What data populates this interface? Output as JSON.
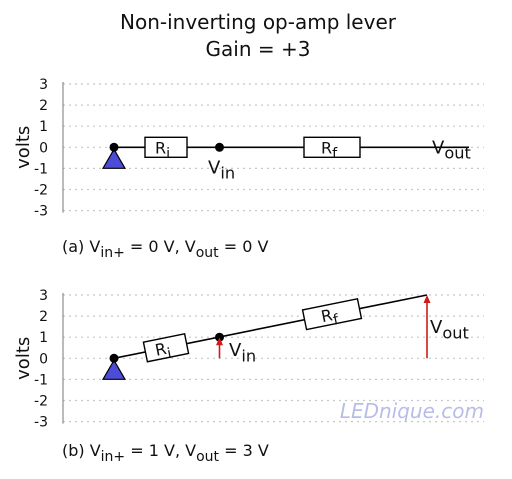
{
  "title": "Non-inverting op-amp lever",
  "subtitle": "Gain = +3",
  "watermark": "LEDnique.com",
  "colors": {
    "pivot": "#4c4cd9",
    "vector": "#d11a1a",
    "watermark": "#b8bde8",
    "grid": "#c8c8c8"
  },
  "panels": [
    {
      "ylabel": "volts",
      "ticks": [
        "3",
        "2",
        "1",
        "0",
        "-1",
        "-2",
        "-3"
      ],
      "vin_plus": 0,
      "vout": 0,
      "resistor_in": {
        "main": "R",
        "sub": "i"
      },
      "resistor_fb": {
        "main": "R",
        "sub": "f"
      },
      "vin_label": {
        "main": "V",
        "sub": "in"
      },
      "vout_label": {
        "main": "V",
        "sub": "out"
      },
      "caption": {
        "prefix": "(a) V",
        "sub1": "in+",
        "mid": " = 0 V, V",
        "sub2": "out",
        "suffix": " = 0 V"
      }
    },
    {
      "ylabel": "volts",
      "ticks": [
        "3",
        "2",
        "1",
        "0",
        "-1",
        "-2",
        "-3"
      ],
      "vin_plus": 1,
      "vout": 3,
      "resistor_in": {
        "main": "R",
        "sub": "i"
      },
      "resistor_fb": {
        "main": "R",
        "sub": "f"
      },
      "vin_label": {
        "main": "V",
        "sub": "in"
      },
      "vout_label": {
        "main": "V",
        "sub": "out"
      },
      "caption": {
        "prefix": "(b) V",
        "sub1": "in+",
        "mid": " = 1 V, V",
        "sub2": "out",
        "suffix": " = 3 V"
      }
    }
  ]
}
